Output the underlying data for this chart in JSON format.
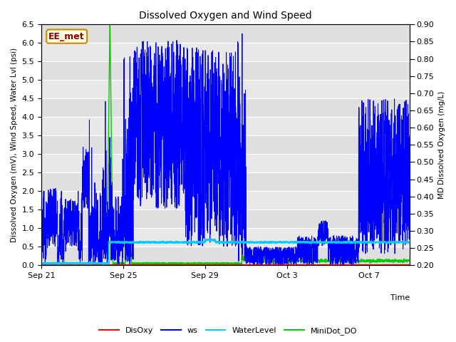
{
  "title": "Dissolved Oxygen and Wind Speed",
  "xlabel": "Time",
  "ylabel_left": "Dissolved Oxygen (mV), Wind Speed, Water Lvl (psi)",
  "ylabel_right": "MD Dissolved Oxygen (mg/L)",
  "ylim_left": [
    0.0,
    6.5
  ],
  "ylim_right": [
    0.2,
    0.9
  ],
  "yticks_left": [
    0.0,
    0.5,
    1.0,
    1.5,
    2.0,
    2.5,
    3.0,
    3.5,
    4.0,
    4.5,
    5.0,
    5.5,
    6.0,
    6.5
  ],
  "yticks_right": [
    0.2,
    0.25,
    0.3,
    0.35,
    0.4,
    0.45,
    0.5,
    0.55,
    0.6,
    0.65,
    0.7,
    0.75,
    0.8,
    0.85,
    0.9
  ],
  "xtick_labels": [
    "Sep 21",
    "Sep 25",
    "Sep 29",
    "Oct 3",
    "Oct 7"
  ],
  "xtick_positions": [
    0,
    4,
    8,
    12,
    16
  ],
  "xlim": [
    0,
    18
  ],
  "annotation_text": "EE_met",
  "colors": {
    "DisOxy": "#ff0000",
    "ws": "#0000ff",
    "WaterLevel": "#00ccff",
    "MiniDot_DO": "#00cc00"
  },
  "legend_entries": [
    "DisOxy",
    "ws",
    "WaterLevel",
    "MiniDot_DO"
  ],
  "bg_stripe_colors": [
    "#e8e8e8",
    "#d8d8d8"
  ]
}
